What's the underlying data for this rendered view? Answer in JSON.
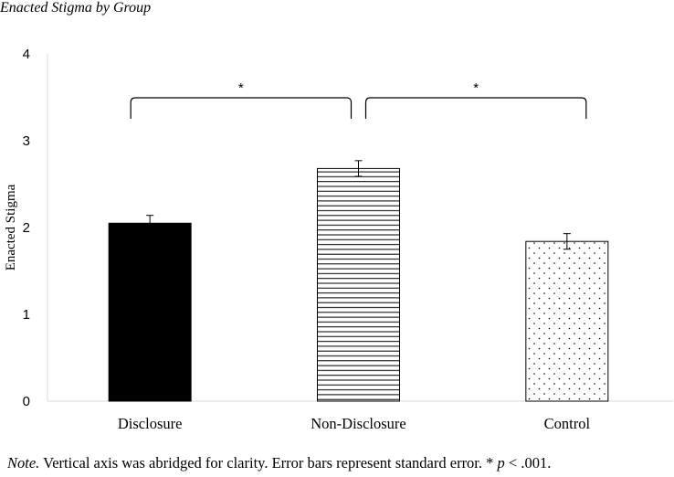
{
  "chart_data": {
    "type": "bar",
    "title": "Enacted Stigma by Group",
    "ylabel": "Enacted Stigma",
    "xlabel": "",
    "categories": [
      "Disclosure",
      "Non-Disclosure",
      "Control"
    ],
    "values": [
      2.05,
      2.68,
      1.84
    ],
    "errors": [
      0.09,
      0.09,
      0.09
    ],
    "ylim": [
      0,
      4
    ],
    "yticks": [
      "0",
      "1",
      "2",
      "3",
      "4"
    ],
    "grid": false,
    "fills": [
      "solid-black",
      "horizontal-lines",
      "dots"
    ],
    "significance": [
      {
        "from": 0,
        "to": 1,
        "label": "*"
      },
      {
        "from": 1,
        "to": 2,
        "label": "*"
      }
    ]
  },
  "note": {
    "prefix": "Note.",
    "text": " Vertical axis was abridged for clarity. Error bars represent standard error. * ",
    "p": "p",
    "suffix": " < .001."
  }
}
